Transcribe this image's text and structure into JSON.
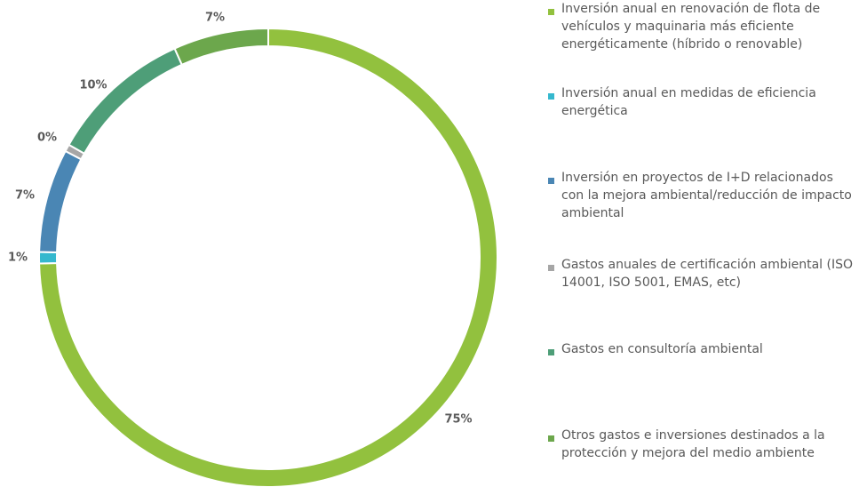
{
  "chart_data": {
    "type": "pie",
    "variant": "donut",
    "title": "",
    "categories": [
      "Inversión anual en renovación de flota de vehículos y maquinaria más eficiente energéticamente (híbrido o renovable)",
      "Inversión anual en medidas de eficiencia energética",
      "Inversión en proyectos de I+D relacionados con la mejora ambiental/reducción de impacto ambiental",
      "Gastos anuales de certificación ambiental (ISO 14001, ISO 5001, EMAS, etc)",
      "Gastos en consultoría ambiental",
      "Otros gastos e inversiones destinados a la protección y mejora del medio ambiente"
    ],
    "values": [
      74.6,
      0.8,
      7.3,
      0.5,
      10.1,
      6.7
    ],
    "data_labels": [
      "75%",
      "1%",
      "7%",
      "0%",
      "10%",
      "7%"
    ],
    "colors": [
      "#92C13E",
      "#35B8CE",
      "#4A86B4",
      "#A6A6A6",
      "#4E9E78",
      "#6CA74C"
    ],
    "legend_position": "right"
  }
}
